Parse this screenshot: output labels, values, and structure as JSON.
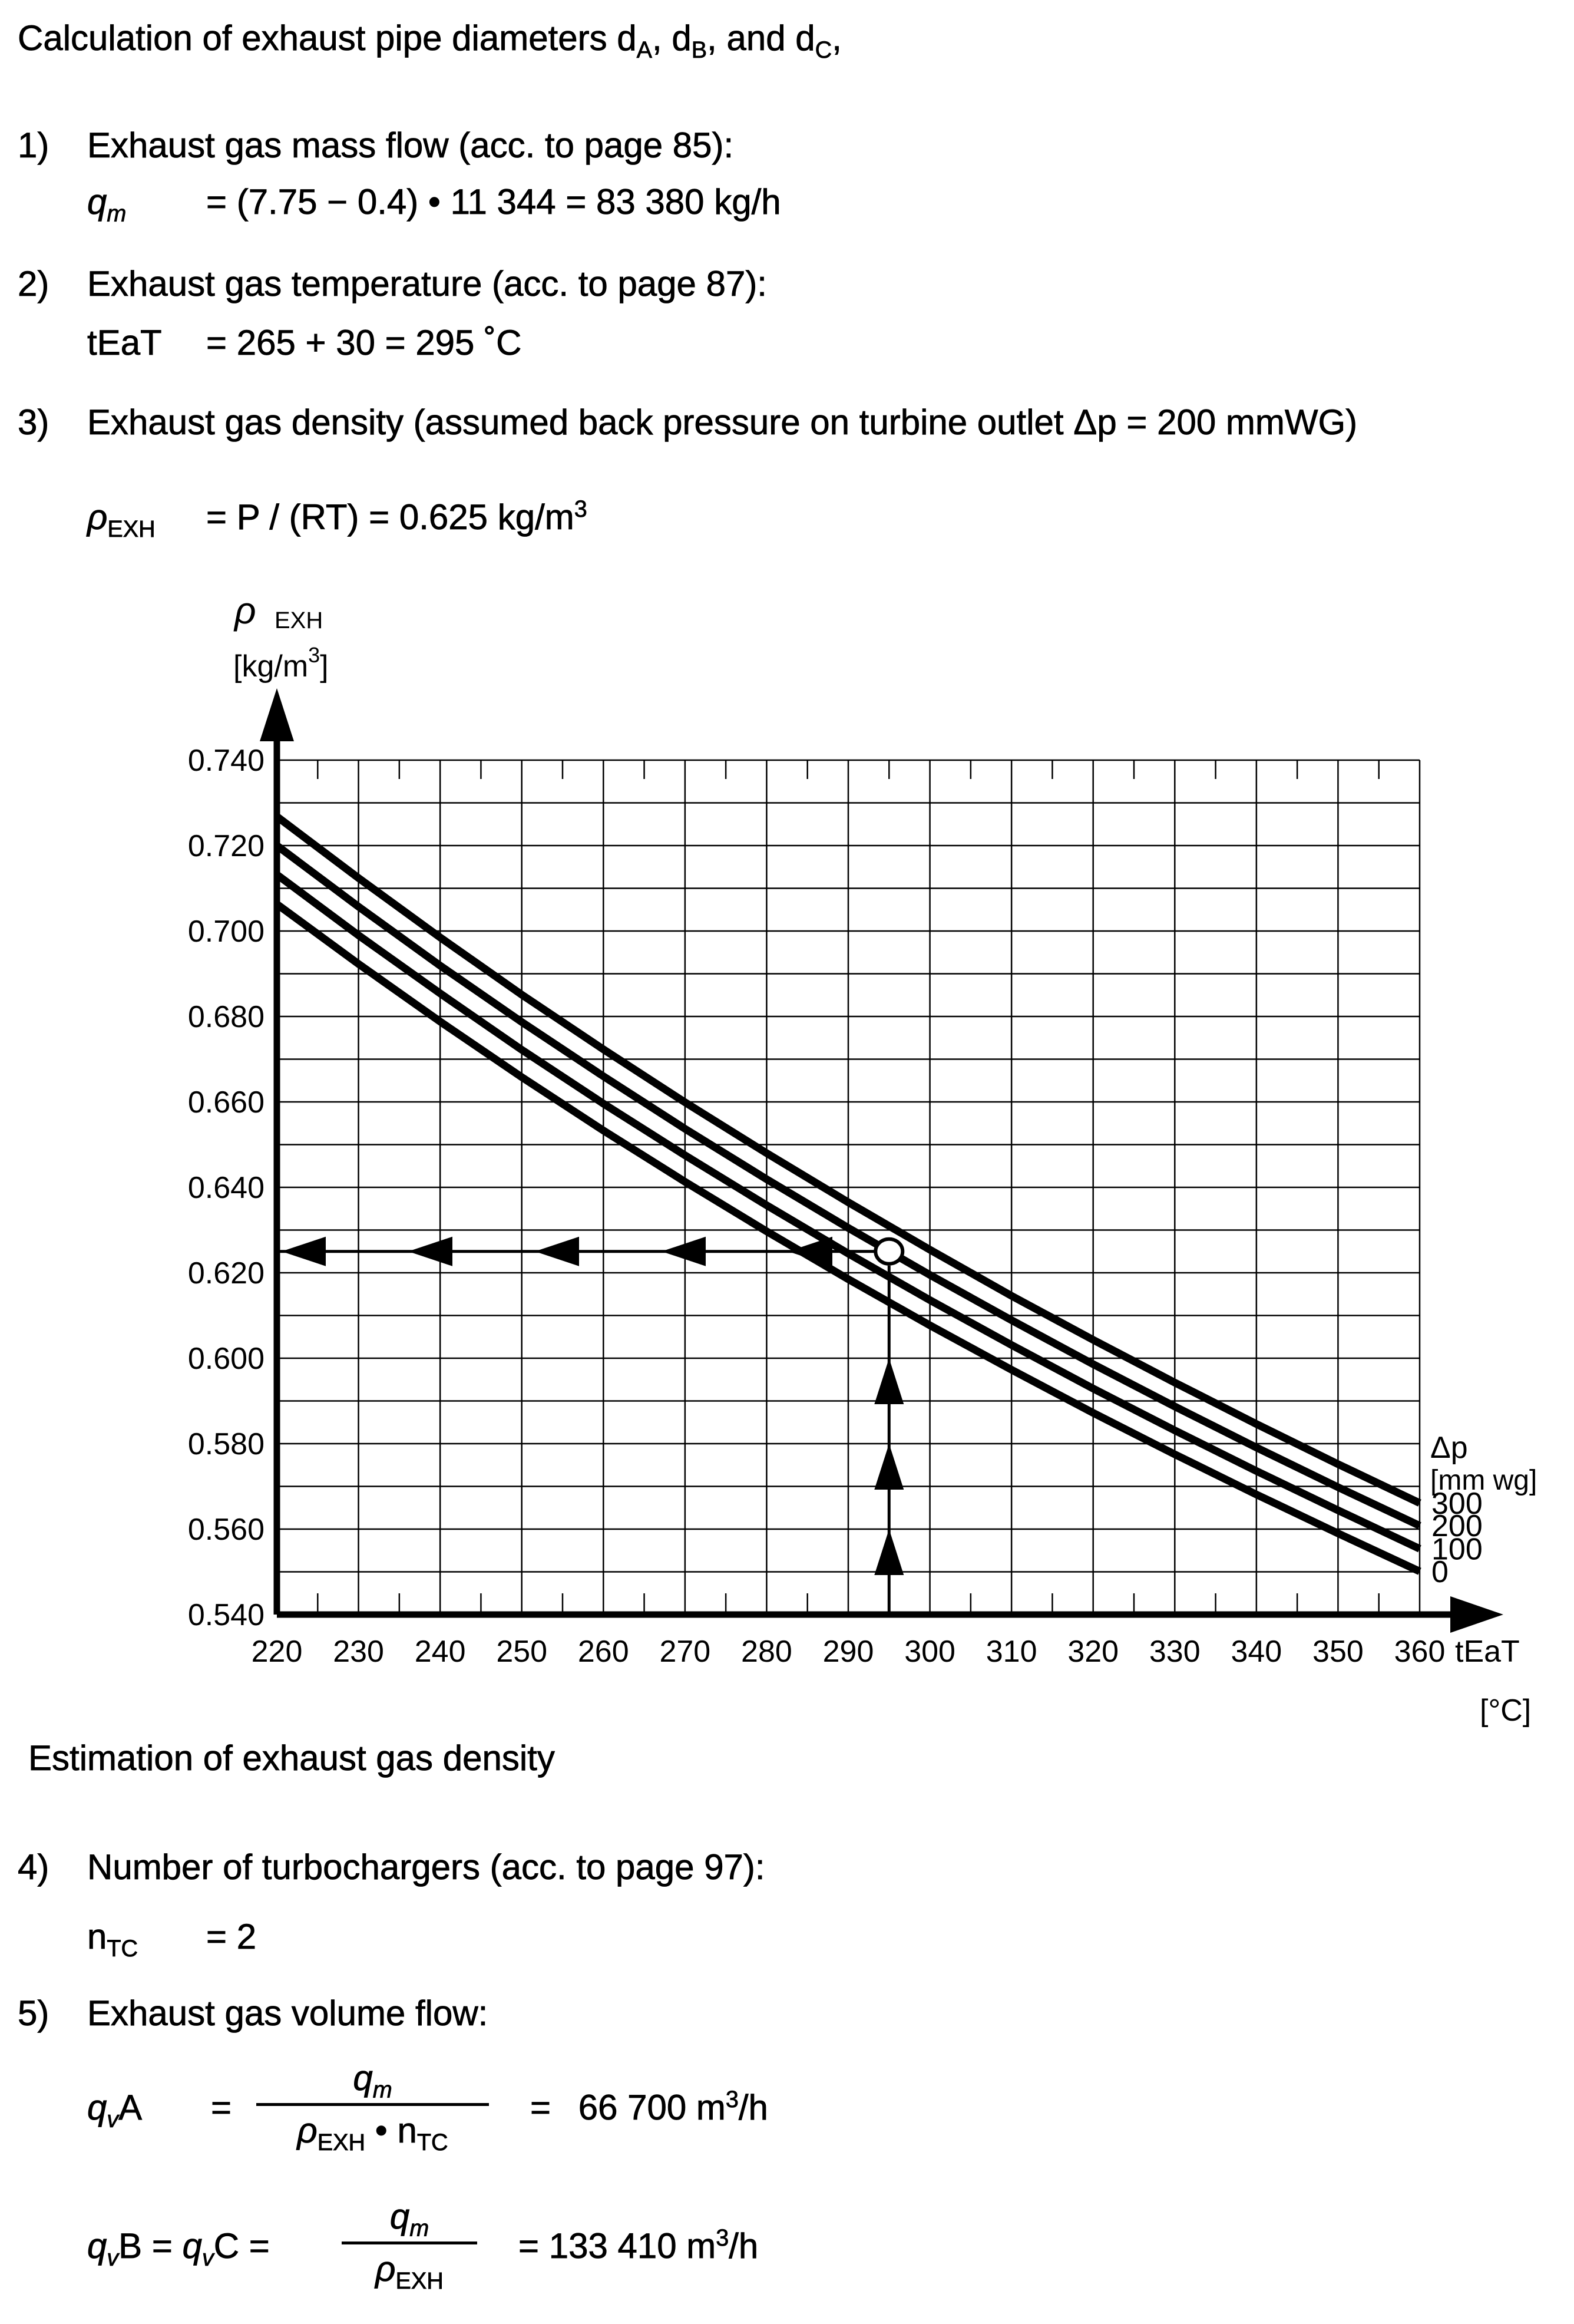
{
  "title": {
    "segments": [
      {
        "t": "Calculation of exhaust pipe diameters d"
      },
      {
        "sub": "A"
      },
      {
        "t": ", d"
      },
      {
        "sub": "B"
      },
      {
        "t": ", and d"
      },
      {
        "sub": "C"
      },
      {
        "t": ","
      }
    ]
  },
  "items": [
    {
      "num": "1)",
      "heading": "Exhaust gas mass flow (acc. to page 85):",
      "lhs": [
        {
          "t": "q",
          "i": true
        },
        {
          "sub": "m",
          "i": true
        }
      ],
      "rhs": [
        {
          "t": "= (7.75 − 0.4) • 11 344 = 83 380 kg/h"
        }
      ]
    },
    {
      "num": "2)",
      "heading": "Exhaust gas temperature (acc. to page 87):",
      "lhs": [
        {
          "t": "tEaT"
        }
      ],
      "rhs": [
        {
          "t": "= 265 + 30 = 295 ˚C"
        }
      ]
    },
    {
      "num": "3)",
      "heading": "Exhaust gas density (assumed back pressure on turbine outlet Δp = 200 mmWG)",
      "lhs": [
        {
          "t": "ρ",
          "i": true
        },
        {
          "sub": "EXH"
        }
      ],
      "rhs": [
        {
          "t": "= P / (RT) = 0.625 kg/m"
        },
        {
          "sup": "3"
        }
      ]
    },
    {
      "num": "4)",
      "heading": "Number of turbochargers (acc. to page 97):",
      "lhs": [
        {
          "t": "n"
        },
        {
          "sub": "TC"
        }
      ],
      "rhs": [
        {
          "t": "= 2"
        }
      ]
    },
    {
      "num": "5)",
      "heading": "Exhaust gas volume flow:"
    }
  ],
  "equations": [
    {
      "lhs": [
        {
          "t": "q",
          "i": true
        },
        {
          "sub": "v",
          "i": true
        },
        {
          "t": "A"
        }
      ],
      "eq": "=",
      "frac_num": [
        {
          "t": "q",
          "i": true
        },
        {
          "sub": "m",
          "i": true
        }
      ],
      "frac_den": [
        {
          "t": "ρ",
          "i": true
        },
        {
          "sub": "EXH"
        },
        {
          "t": " • n"
        },
        {
          "sub": "TC"
        }
      ],
      "result": [
        {
          "t": "=  66 700 m"
        },
        {
          "sup": "3"
        },
        {
          "t": "/h"
        }
      ]
    },
    {
      "lhs": [
        {
          "t": "q",
          "i": true
        },
        {
          "sub": "v",
          "i": true
        },
        {
          "t": "B = "
        },
        {
          "t": "q",
          "i": true
        },
        {
          "sub": "v",
          "i": true
        },
        {
          "t": "C ="
        }
      ],
      "frac_num": [
        {
          "t": "q",
          "i": true
        },
        {
          "sub": "m",
          "i": true
        }
      ],
      "frac_den": [
        {
          "t": "ρ",
          "i": true
        },
        {
          "sub": "EXH"
        }
      ],
      "result": [
        {
          "t": "= 133 410 m"
        },
        {
          "sup": "3"
        },
        {
          "t": "/h"
        }
      ]
    }
  ],
  "caption": "Estimation of exhaust gas density",
  "chart_data": {
    "type": "line",
    "title": "",
    "x": [
      220,
      230,
      240,
      250,
      260,
      270,
      280,
      290,
      300,
      310,
      320,
      330,
      340,
      350,
      360
    ],
    "series": [
      {
        "name": "300",
        "values": [
          0.7268,
          0.7124,
          0.6985,
          0.6851,
          0.6723,
          0.6599,
          0.648,
          0.6365,
          0.6254,
          0.6146,
          0.6043,
          0.5943,
          0.5846,
          0.5752,
          0.5661
        ]
      },
      {
        "name": "200",
        "values": [
          0.72,
          0.7057,
          0.6919,
          0.6787,
          0.666,
          0.6537,
          0.6419,
          0.6305,
          0.6195,
          0.6089,
          0.5986,
          0.5887,
          0.5791,
          0.5698,
          0.5608
        ]
      },
      {
        "name": "100",
        "values": [
          0.7132,
          0.699,
          0.6854,
          0.6722,
          0.6596,
          0.6475,
          0.6358,
          0.6245,
          0.6136,
          0.6031,
          0.5929,
          0.5831,
          0.5736,
          0.5644,
          0.5554
        ]
      },
      {
        "name": "0",
        "values": [
          0.7063,
          0.6923,
          0.6788,
          0.6658,
          0.6533,
          0.6413,
          0.6297,
          0.6185,
          0.6077,
          0.5973,
          0.5872,
          0.5775,
          0.5681,
          0.559,
          0.5501
        ]
      }
    ],
    "marker": {
      "x": 295,
      "y": 0.625,
      "h_arrows": 5,
      "v_arrows": 3
    },
    "xlim": [
      220,
      360
    ],
    "ylim": [
      0.54,
      0.74
    ],
    "x_grid_step": 10,
    "y_grid_step": 0.01,
    "x_subtick_step": 5,
    "x_ticks": [
      "220",
      "230",
      "240",
      "250",
      "260",
      "270",
      "280",
      "290",
      "300",
      "310",
      "320",
      "330",
      "340",
      "350",
      "360"
    ],
    "y_ticks": [
      "0.740",
      "0.720",
      "0.700",
      "0.680",
      "0.660",
      "0.640",
      "0.620",
      "0.600",
      "0.580",
      "0.560",
      "0.540"
    ],
    "xlabel_main": "tEaT",
    "xlabel_unit": "[°C]",
    "ylabel_main": "ρ",
    "ylabel_sub": "EXH",
    "ylabel_unit_pre": "[kg/m",
    "ylabel_unit_sup": "3",
    "ylabel_unit_post": "]",
    "legend_title_line1": "Δp",
    "legend_title_line2": "[mm wg]",
    "grid": "on",
    "legend_position": "right"
  }
}
